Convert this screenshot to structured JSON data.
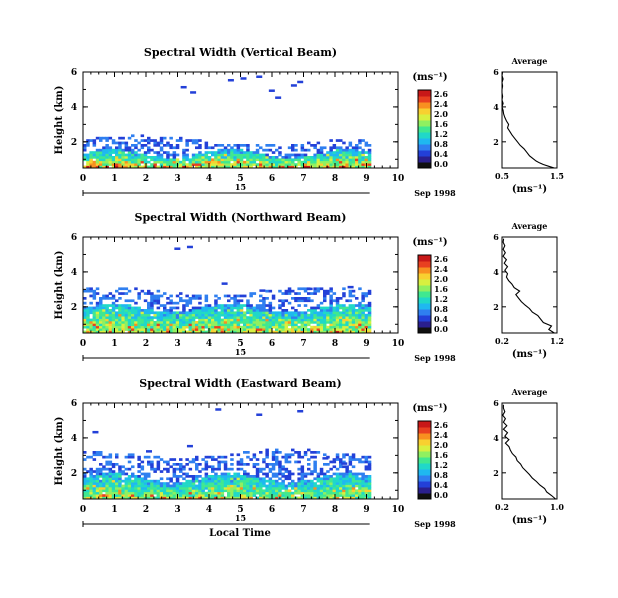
{
  "figure": {
    "xlabel": "Local Time"
  },
  "colors": {
    "scale": [
      "#101010",
      "#2a1f8e",
      "#2340d8",
      "#2f7ff0",
      "#1fb8f0",
      "#20d8c8",
      "#40e890",
      "#90f060",
      "#d8f040",
      "#f8d030",
      "#f89020",
      "#e84020",
      "#c81818"
    ]
  },
  "chart_data": [
    {
      "type": "heatmap",
      "title": "Spectral Width (Vertical Beam)",
      "ylabel": "Height (km)",
      "xlim": [
        0,
        10
      ],
      "ylim": [
        0.5,
        6
      ],
      "xticks": [
        "0",
        "1",
        "2",
        "3",
        "4",
        "5",
        "6",
        "7",
        "8",
        "9",
        "10"
      ],
      "yticks": [
        "2",
        "4",
        "6"
      ],
      "date_day": "15",
      "date_label": "Sep 1998",
      "colorbar": {
        "unit": "(ms⁻¹)",
        "ticks": [
          "2.6",
          "2.4",
          "2.0",
          "1.6",
          "1.2",
          "0.8",
          "0.4",
          "0.0"
        ]
      },
      "data_extent_hours": [
        0,
        9.1
      ],
      "dense_top_km": 1.4,
      "echo_top_km": 2.2,
      "intensity": "high",
      "sparse": [
        [
          5.0,
          5.7
        ],
        [
          5.5,
          5.8
        ],
        [
          4.6,
          5.6
        ],
        [
          3.1,
          5.2
        ],
        [
          6.6,
          5.3
        ],
        [
          5.9,
          5.0
        ],
        [
          6.1,
          4.6
        ],
        [
          3.4,
          4.9
        ],
        [
          6.8,
          5.5
        ]
      ],
      "average": {
        "title": "Average",
        "xlabel": "(ms⁻¹)",
        "xlim": [
          0.5,
          1.5
        ],
        "xticks": [
          "0.5",
          "1.5"
        ],
        "yticks": [
          "2",
          "4",
          "6"
        ],
        "profile": [
          [
            0.5,
            1.45
          ],
          [
            0.6,
            1.35
          ],
          [
            0.7,
            1.25
          ],
          [
            0.8,
            1.18
          ],
          [
            0.9,
            1.12
          ],
          [
            1.0,
            1.08
          ],
          [
            1.2,
            1.0
          ],
          [
            1.4,
            0.95
          ],
          [
            1.6,
            0.9
          ],
          [
            1.8,
            0.83
          ],
          [
            2.0,
            0.78
          ],
          [
            2.2,
            0.73
          ],
          [
            2.4,
            0.68
          ],
          [
            2.6,
            0.64
          ],
          [
            2.8,
            0.6
          ],
          [
            3.0,
            0.62
          ],
          [
            3.2,
            0.58
          ],
          [
            3.4,
            0.55
          ],
          [
            3.6,
            0.53
          ],
          [
            3.8,
            0.52
          ],
          [
            4.0,
            0.5
          ],
          [
            4.2,
            0.52
          ],
          [
            4.4,
            0.5
          ],
          [
            4.6,
            0.51
          ],
          [
            4.8,
            0.5
          ],
          [
            5.0,
            0.5
          ],
          [
            5.2,
            0.51
          ],
          [
            5.4,
            0.5
          ],
          [
            5.6,
            0.52
          ],
          [
            5.8,
            0.5
          ],
          [
            6.0,
            0.51
          ]
        ]
      }
    },
    {
      "type": "heatmap",
      "title": "Spectral Width (Northward Beam)",
      "ylabel": "Height (km)",
      "xlim": [
        0,
        10
      ],
      "ylim": [
        0.5,
        6
      ],
      "xticks": [
        "0",
        "1",
        "2",
        "3",
        "4",
        "5",
        "6",
        "7",
        "8",
        "9",
        "10"
      ],
      "yticks": [
        "2",
        "4",
        "6"
      ],
      "date_day": "15",
      "date_label": "Sep 1998",
      "colorbar": {
        "unit": "(ms⁻¹)",
        "ticks": [
          "2.6",
          "2.4",
          "2.0",
          "1.6",
          "1.2",
          "0.8",
          "0.4",
          "0.0"
        ]
      },
      "data_extent_hours": [
        0,
        9.1
      ],
      "dense_top_km": 2.0,
      "echo_top_km": 3.0,
      "intensity": "medium",
      "sparse": [
        [
          2.9,
          5.4
        ],
        [
          3.3,
          5.5
        ],
        [
          4.4,
          3.4
        ],
        [
          5.6,
          3.0
        ],
        [
          7.1,
          3.1
        ],
        [
          8.4,
          3.2
        ]
      ],
      "average": {
        "title": "Average",
        "xlabel": "(ms⁻¹)",
        "xlim": [
          0.2,
          1.2
        ],
        "xticks": [
          "0.2",
          "1.2"
        ],
        "yticks": [
          "2",
          "4",
          "6"
        ],
        "profile": [
          [
            0.5,
            1.15
          ],
          [
            0.7,
            1.05
          ],
          [
            0.9,
            1.1
          ],
          [
            1.1,
            0.95
          ],
          [
            1.3,
            0.9
          ],
          [
            1.5,
            0.85
          ],
          [
            1.7,
            0.75
          ],
          [
            1.9,
            0.7
          ],
          [
            2.1,
            0.62
          ],
          [
            2.3,
            0.55
          ],
          [
            2.5,
            0.5
          ],
          [
            2.7,
            0.45
          ],
          [
            2.9,
            0.52
          ],
          [
            3.1,
            0.42
          ],
          [
            3.3,
            0.38
          ],
          [
            3.5,
            0.32
          ],
          [
            3.7,
            0.28
          ],
          [
            3.9,
            0.3
          ],
          [
            4.1,
            0.25
          ],
          [
            4.3,
            0.3
          ],
          [
            4.5,
            0.24
          ],
          [
            4.7,
            0.28
          ],
          [
            4.9,
            0.22
          ],
          [
            5.1,
            0.26
          ],
          [
            5.3,
            0.22
          ],
          [
            5.5,
            0.25
          ],
          [
            5.7,
            0.22
          ],
          [
            5.9,
            0.23
          ]
        ]
      }
    },
    {
      "type": "heatmap",
      "title": "Spectral Width (Eastward Beam)",
      "ylabel": "Height (km)",
      "xlim": [
        0,
        10
      ],
      "ylim": [
        0.5,
        6
      ],
      "xticks": [
        "0",
        "1",
        "2",
        "3",
        "4",
        "5",
        "6",
        "7",
        "8",
        "9",
        "10"
      ],
      "yticks": [
        "2",
        "4",
        "6"
      ],
      "date_day": "15",
      "date_label": "Sep 1998",
      "colorbar": {
        "unit": "(ms⁻¹)",
        "ticks": [
          "2.6",
          "2.4",
          "2.0",
          "1.6",
          "1.2",
          "0.8",
          "0.4",
          "0.0"
        ]
      },
      "data_extent_hours": [
        0,
        9.1
      ],
      "dense_top_km": 1.8,
      "echo_top_km": 3.2,
      "intensity": "low",
      "sparse": [
        [
          0.3,
          4.4
        ],
        [
          4.2,
          5.7
        ],
        [
          5.5,
          5.4
        ],
        [
          6.8,
          5.6
        ],
        [
          8.2,
          2.6
        ],
        [
          2.0,
          3.3
        ],
        [
          3.3,
          3.6
        ],
        [
          7.6,
          2.9
        ]
      ],
      "average": {
        "title": "Average",
        "xlabel": "(ms⁻¹)",
        "xlim": [
          0.2,
          1.0
        ],
        "xticks": [
          "0.2",
          "1.0"
        ],
        "yticks": [
          "2",
          "4",
          "6"
        ],
        "profile": [
          [
            0.5,
            0.98
          ],
          [
            0.7,
            0.92
          ],
          [
            0.9,
            0.85
          ],
          [
            1.1,
            0.82
          ],
          [
            1.3,
            0.75
          ],
          [
            1.5,
            0.7
          ],
          [
            1.7,
            0.64
          ],
          [
            1.9,
            0.6
          ],
          [
            2.1,
            0.55
          ],
          [
            2.3,
            0.5
          ],
          [
            2.5,
            0.47
          ],
          [
            2.7,
            0.42
          ],
          [
            2.9,
            0.4
          ],
          [
            3.1,
            0.35
          ],
          [
            3.3,
            0.32
          ],
          [
            3.5,
            0.3
          ],
          [
            3.7,
            0.25
          ],
          [
            3.9,
            0.3
          ],
          [
            4.1,
            0.24
          ],
          [
            4.3,
            0.28
          ],
          [
            4.5,
            0.22
          ],
          [
            4.7,
            0.27
          ],
          [
            4.9,
            0.22
          ],
          [
            5.1,
            0.25
          ],
          [
            5.3,
            0.21
          ],
          [
            5.5,
            0.24
          ],
          [
            5.7,
            0.22
          ],
          [
            5.9,
            0.22
          ]
        ]
      }
    }
  ]
}
